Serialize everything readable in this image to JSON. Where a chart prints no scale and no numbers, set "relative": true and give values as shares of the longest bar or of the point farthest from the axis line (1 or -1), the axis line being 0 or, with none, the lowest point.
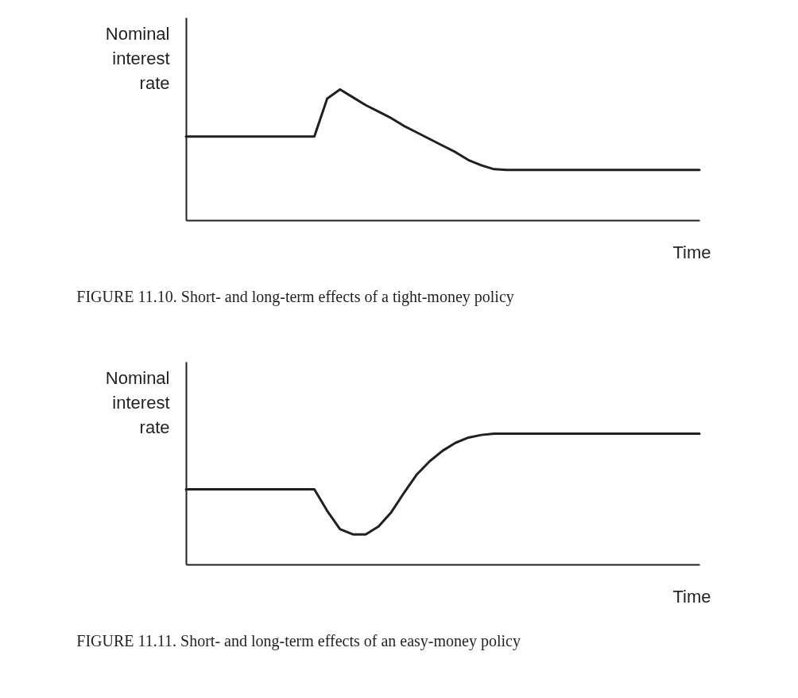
{
  "chart_data": [
    {
      "type": "line",
      "relative": true,
      "ylabel": "Nominal interest rate",
      "xlabel": "Time",
      "annotations": [
        "FIGURE 11.10. Short- and long-term effects of a tight-money policy"
      ],
      "categories": [
        null,
        null,
        null,
        null,
        null,
        null,
        null,
        null,
        null,
        null,
        null,
        null,
        null,
        null,
        null,
        null,
        null,
        null,
        null,
        null,
        null,
        null,
        null,
        null,
        null,
        null,
        null,
        null,
        null,
        null,
        null,
        null,
        null,
        null,
        null,
        null,
        null,
        null,
        null,
        null,
        null
      ],
      "series": [
        {
          "color": "#231f20",
          "values": [
            0.64,
            0.64,
            0.64,
            0.64,
            0.64,
            0.64,
            0.64,
            0.64,
            0.64,
            0.64,
            0.64,
            0.93,
            1,
            0.94,
            0.88,
            0.83,
            0.78,
            0.72,
            0.67,
            0.62,
            0.57,
            0.52,
            0.46,
            0.42,
            0.39,
            0.385,
            0.385,
            0.385,
            0.385,
            0.385,
            0.385,
            0.385,
            0.385,
            0.385,
            0.385,
            0.385,
            0.385,
            0.385,
            0.385,
            0.385,
            0.385
          ]
        }
      ]
    },
    {
      "type": "line",
      "relative": true,
      "ylabel": "Nominal interest rate",
      "xlabel": "Time",
      "annotations": [
        "FIGURE 11.11. Short- and long-term effects of an easy-money policy"
      ],
      "categories": [
        null,
        null,
        null,
        null,
        null,
        null,
        null,
        null,
        null,
        null,
        null,
        null,
        null,
        null,
        null,
        null,
        null,
        null,
        null,
        null,
        null,
        null,
        null,
        null,
        null,
        null,
        null,
        null,
        null,
        null,
        null,
        null,
        null,
        null,
        null,
        null,
        null,
        null,
        null,
        null,
        null
      ],
      "series": [
        {
          "color": "#231f20",
          "values": [
            0.575,
            0.575,
            0.575,
            0.575,
            0.575,
            0.575,
            0.575,
            0.575,
            0.575,
            0.575,
            0.575,
            0.41,
            0.27,
            0.23,
            0.23,
            0.29,
            0.4,
            0.55,
            0.69,
            0.79,
            0.87,
            0.93,
            0.97,
            0.99,
            1,
            1,
            1,
            1,
            1,
            1,
            1,
            1,
            1,
            1,
            1,
            1,
            1,
            1,
            1,
            1,
            1
          ]
        }
      ]
    }
  ]
}
